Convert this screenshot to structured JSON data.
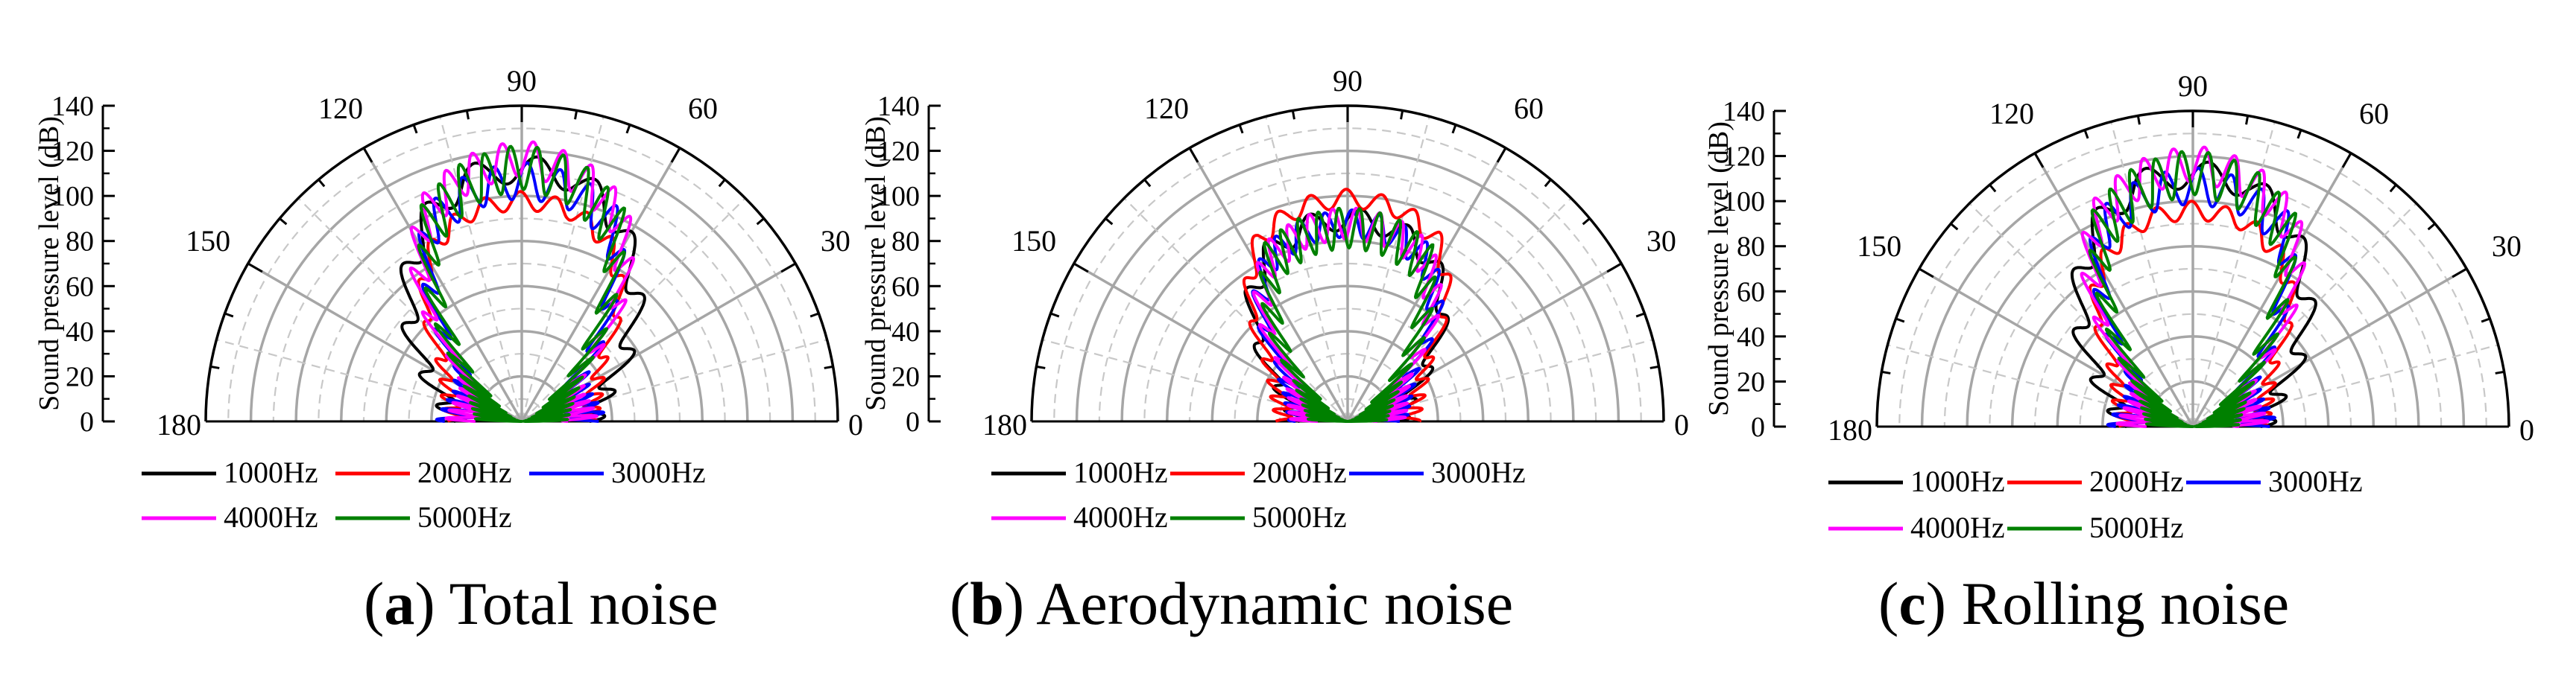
{
  "panels": [
    {
      "letter": "a",
      "caption": "Total noise",
      "chart_data": {
        "type": "polar-line",
        "ylabel": "Sound pressure level (dB)",
        "r_ticks": [
          "0",
          "20",
          "40",
          "60",
          "80",
          "100",
          "120",
          "140"
        ],
        "angle_ticks": [
          "0",
          "30",
          "60",
          "90",
          "120",
          "150",
          "180"
        ],
        "r_range": [
          0,
          140
        ],
        "angle_range": [
          0,
          180
        ],
        "grid": true,
        "legend_position": "bottom",
        "series": [
          {
            "name": "1000Hz",
            "color": "#000000",
            "base": [
              30,
              33,
              45,
              62,
              80,
              98,
              110,
              112,
              110,
              98,
              80,
              62,
              45,
              33,
              30
            ],
            "ripple": 6,
            "cycles": 26
          },
          {
            "name": "2000Hz",
            "color": "#ff0000",
            "base": [
              29,
              32,
              36,
              45,
              70,
              88,
              96,
              98,
              96,
              88,
              70,
              45,
              36,
              32,
              29
            ],
            "ripple": 4,
            "cycles": 40
          },
          {
            "name": "3000Hz",
            "color": "#0000ff",
            "base": [
              30,
              27,
              25,
              30,
              60,
              95,
              104,
              107,
              104,
              95,
              60,
              30,
              25,
              27,
              30
            ],
            "ripple": 8,
            "cycles": 48
          },
          {
            "name": "4000Hz",
            "color": "#ff00ff",
            "base": [
              26,
              24,
              22,
              28,
              70,
              100,
              112,
              117,
              112,
              100,
              70,
              28,
              22,
              24,
              26
            ],
            "ripple": 8,
            "cycles": 56
          },
          {
            "name": "5000Hz",
            "color": "#008000",
            "base": [
              10,
              12,
              16,
              25,
              55,
              95,
              108,
              113,
              108,
              95,
              55,
              25,
              16,
              12,
              10
            ],
            "ripple": 10,
            "cycles": 64
          }
        ]
      }
    },
    {
      "letter": "b",
      "caption": "Aerodynamic noise",
      "chart_data": {
        "type": "polar-line",
        "ylabel": "Sound pressure level (dB)",
        "r_ticks": [
          "0",
          "20",
          "40",
          "60",
          "80",
          "100",
          "120",
          "140"
        ],
        "angle_ticks": [
          "0",
          "30",
          "60",
          "90",
          "120",
          "150",
          "180"
        ],
        "r_range": [
          0,
          140
        ],
        "angle_range": [
          0,
          180
        ],
        "grid": true,
        "legend_position": "bottom",
        "series": [
          {
            "name": "1000Hz",
            "color": "#000000",
            "base": [
              22,
              24,
              32,
              48,
              68,
              82,
              88,
              90,
              88,
              82,
              68,
              48,
              32,
              24,
              22
            ],
            "ripple": 5,
            "cycles": 26
          },
          {
            "name": "2000Hz",
            "color": "#ff0000",
            "base": [
              28,
              30,
              35,
              45,
              70,
              90,
              97,
              99,
              97,
              90,
              70,
              45,
              35,
              30,
              28
            ],
            "ripple": 4,
            "cycles": 40
          },
          {
            "name": "3000Hz",
            "color": "#0000ff",
            "base": [
              20,
              22,
              26,
              35,
              62,
              80,
              86,
              88,
              86,
              80,
              62,
              35,
              26,
              22,
              20
            ],
            "ripple": 6,
            "cycles": 48
          },
          {
            "name": "4000Hz",
            "color": "#ff00ff",
            "base": [
              18,
              20,
              22,
              30,
              60,
              80,
              86,
              88,
              86,
              80,
              60,
              30,
              22,
              20,
              18
            ],
            "ripple": 7,
            "cycles": 56
          },
          {
            "name": "5000Hz",
            "color": "#008000",
            "base": [
              8,
              10,
              14,
              22,
              50,
              78,
              84,
              86,
              84,
              78,
              50,
              22,
              14,
              10,
              8
            ],
            "ripple": 9,
            "cycles": 64
          }
        ]
      }
    },
    {
      "letter": "c",
      "caption": "Rolling noise",
      "chart_data": {
        "type": "polar-line",
        "ylabel": "Sound pressure level (dB)",
        "r_ticks": [
          "0",
          "20",
          "40",
          "60",
          "80",
          "100",
          "120",
          "140"
        ],
        "angle_ticks": [
          "0",
          "30",
          "60",
          "90",
          "120",
          "150",
          "180"
        ],
        "r_range": [
          0,
          140
        ],
        "angle_range": [
          0,
          180
        ],
        "grid": true,
        "legend_position": "bottom",
        "series": [
          {
            "name": "1000Hz",
            "color": "#000000",
            "base": [
              30,
              33,
              45,
              62,
              80,
              98,
              110,
              112,
              110,
              98,
              80,
              62,
              45,
              33,
              30
            ],
            "ripple": 6,
            "cycles": 26
          },
          {
            "name": "2000Hz",
            "color": "#ff0000",
            "base": [
              29,
              32,
              36,
              45,
              70,
              86,
              94,
              96,
              94,
              86,
              70,
              45,
              36,
              32,
              29
            ],
            "ripple": 4,
            "cycles": 40
          },
          {
            "name": "3000Hz",
            "color": "#0000ff",
            "base": [
              30,
              27,
              25,
              30,
              60,
              95,
              104,
              107,
              104,
              95,
              60,
              30,
              25,
              27,
              30
            ],
            "ripple": 8,
            "cycles": 48
          },
          {
            "name": "4000Hz",
            "color": "#ff00ff",
            "base": [
              26,
              24,
              22,
              28,
              70,
              100,
              112,
              117,
              112,
              100,
              70,
              28,
              22,
              24,
              26
            ],
            "ripple": 8,
            "cycles": 56
          },
          {
            "name": "5000Hz",
            "color": "#008000",
            "base": [
              10,
              12,
              16,
              25,
              55,
              95,
              108,
              113,
              108,
              95,
              55,
              25,
              16,
              12,
              10
            ],
            "ripple": 10,
            "cycles": 64
          }
        ]
      }
    }
  ]
}
